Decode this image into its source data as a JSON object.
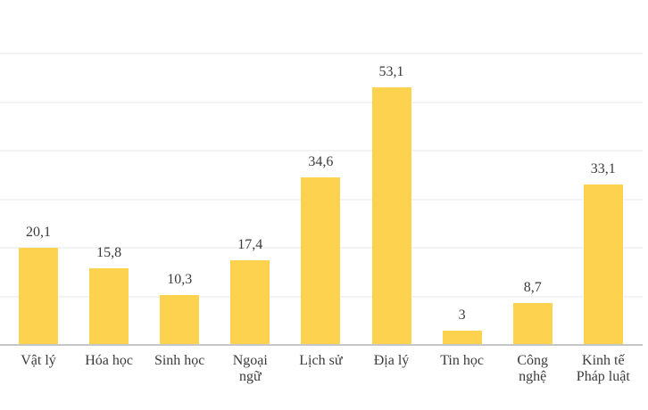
{
  "chart_data": {
    "type": "bar",
    "title": "",
    "xlabel": "",
    "ylabel": "",
    "categories": [
      "Vật lý",
      "Hóa học",
      "Sinh học",
      "Ngoại ngữ",
      "Lịch sử",
      "Địa lý",
      "Tin học",
      "Công nghệ",
      "Kinh tế Pháp luật"
    ],
    "values": [
      20.1,
      15.8,
      10.3,
      17.4,
      34.6,
      53.1,
      3,
      8.7,
      33.1
    ],
    "value_labels": [
      "20,1",
      "15,8",
      "10,3",
      "17,4",
      "34,6",
      "53,1",
      "3",
      "8,7",
      "33,1"
    ],
    "category_label_lines": [
      [
        "Vật lý"
      ],
      [
        "Hóa học"
      ],
      [
        "Sinh học"
      ],
      [
        "Ngoại",
        "ngữ"
      ],
      [
        "Lịch sử"
      ],
      [
        "Địa lý"
      ],
      [
        "Tin học"
      ],
      [
        "Công",
        "nghệ"
      ],
      [
        "Kinh tế",
        "Pháp luật"
      ]
    ],
    "ylim": [
      0,
      60
    ],
    "gridline_values": [
      10,
      20,
      30,
      40,
      50,
      60
    ],
    "grid_on": true,
    "legend": null,
    "colors": {
      "bar": "#FDD24E",
      "gridline": "#f3f3f3",
      "axis_line": "#c6c6c6",
      "text": "#3b3b3b",
      "background": "#ffffff"
    }
  }
}
